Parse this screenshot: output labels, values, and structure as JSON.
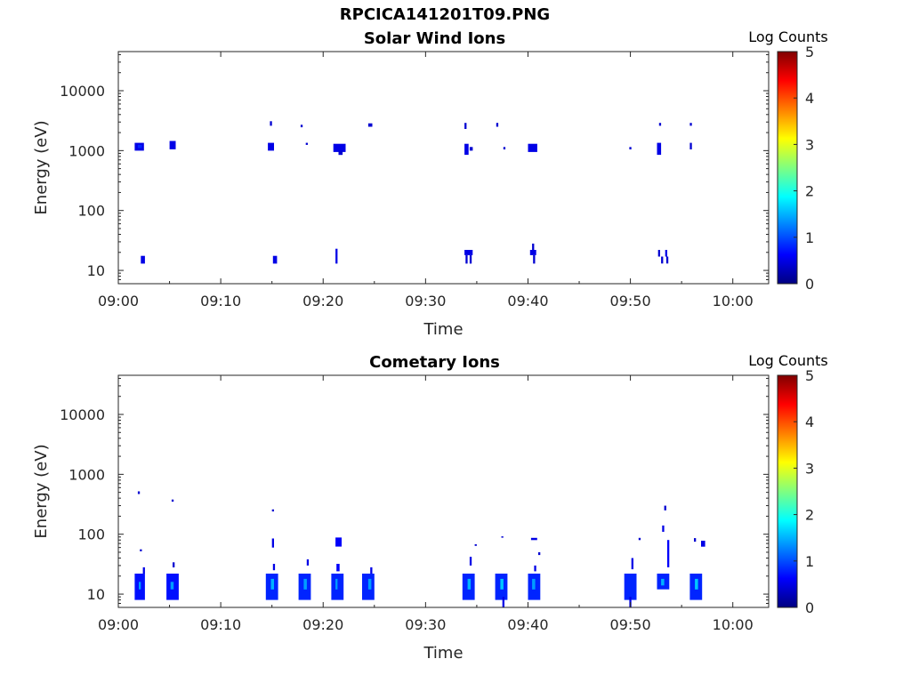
{
  "figure": {
    "title": "RPCICA141201T09.PNG"
  },
  "colorbar": {
    "label": "Log Counts",
    "range": [
      0,
      5
    ],
    "ticks": [
      "0",
      "1",
      "2",
      "3",
      "4",
      "5"
    ]
  },
  "chart_data": [
    {
      "type": "heatmap",
      "title": "Solar Wind Ions",
      "xlabel": "Time",
      "ylabel": "Energy (eV)",
      "x_unit": "minutes after 09:00",
      "xlim": [
        0,
        63.5
      ],
      "ylim": [
        6,
        45000
      ],
      "yscale": "log",
      "xticks": [
        "09:00",
        "09:10",
        "09:20",
        "09:30",
        "09:40",
        "09:50",
        "10:00"
      ],
      "yticks": [
        "10",
        "100",
        "1000",
        "10000"
      ],
      "clim": [
        0,
        5
      ],
      "cells": [
        [
          1.6,
          2.5,
          1000,
          1350,
          0.5
        ],
        [
          1.9,
          2.3,
          1100,
          1250,
          0.8
        ],
        [
          5.0,
          5.6,
          1050,
          1450,
          0.5
        ],
        [
          14.6,
          15.2,
          1000,
          1350,
          0.5
        ],
        [
          14.8,
          15.0,
          2600,
          3100,
          0.4
        ],
        [
          17.8,
          18.0,
          2450,
          2700,
          0.4
        ],
        [
          18.3,
          18.5,
          1250,
          1350,
          0.4
        ],
        [
          21.0,
          22.2,
          950,
          1300,
          0.5
        ],
        [
          21.5,
          21.9,
          850,
          1000,
          0.4
        ],
        [
          24.4,
          24.8,
          2500,
          2850,
          0.4
        ],
        [
          33.8,
          34.0,
          2300,
          2900,
          0.4
        ],
        [
          33.8,
          34.2,
          850,
          1300,
          0.5
        ],
        [
          34.3,
          34.6,
          1000,
          1150,
          0.4
        ],
        [
          36.9,
          37.1,
          2500,
          2900,
          0.4
        ],
        [
          37.6,
          37.8,
          1050,
          1150,
          0.4
        ],
        [
          40.0,
          40.9,
          950,
          1300,
          0.5
        ],
        [
          49.9,
          50.1,
          1050,
          1150,
          0.4
        ],
        [
          52.6,
          53.0,
          850,
          1350,
          0.5
        ],
        [
          52.8,
          53.0,
          2600,
          2900,
          0.4
        ],
        [
          55.8,
          56.0,
          1050,
          1350,
          0.4
        ],
        [
          55.8,
          56.0,
          2600,
          2900,
          0.4
        ],
        [
          2.2,
          2.6,
          13,
          17.5,
          0.5
        ],
        [
          15.1,
          15.5,
          13,
          17.5,
          0.5
        ],
        [
          21.2,
          21.4,
          13,
          23,
          0.5
        ],
        [
          33.8,
          34.6,
          18,
          22,
          0.5
        ],
        [
          33.9,
          34.1,
          13,
          18,
          0.4
        ],
        [
          34.3,
          34.5,
          13,
          18,
          0.4
        ],
        [
          40.2,
          40.8,
          18,
          22,
          0.5
        ],
        [
          40.4,
          40.6,
          22,
          28,
          0.4
        ],
        [
          40.5,
          40.7,
          13,
          18,
          0.4
        ],
        [
          52.7,
          52.9,
          17,
          22,
          0.4
        ],
        [
          53.0,
          53.2,
          13,
          17,
          0.4
        ],
        [
          53.4,
          53.6,
          17,
          22,
          0.5
        ],
        [
          53.5,
          53.7,
          13,
          17,
          0.4
        ]
      ]
    },
    {
      "type": "heatmap",
      "title": "Cometary Ions",
      "xlabel": "Time",
      "ylabel": "Energy (eV)",
      "x_unit": "minutes after 09:00",
      "xlim": [
        0,
        63.5
      ],
      "ylim": [
        6,
        45000
      ],
      "yscale": "log",
      "xticks": [
        "09:00",
        "09:10",
        "09:20",
        "09:30",
        "09:40",
        "09:50",
        "10:00"
      ],
      "yticks": [
        "10",
        "100",
        "1000",
        "10000"
      ],
      "clim": [
        0,
        5
      ],
      "cells": [
        [
          1.6,
          2.6,
          8,
          22,
          0.7
        ],
        [
          2.0,
          2.2,
          12,
          16,
          1.4
        ],
        [
          2.4,
          2.6,
          22,
          28,
          0.5
        ],
        [
          1.9,
          2.1,
          470,
          520,
          0.4
        ],
        [
          2.1,
          2.3,
          52,
          56,
          0.4
        ],
        [
          4.7,
          5.9,
          8,
          22,
          0.7
        ],
        [
          5.1,
          5.4,
          12,
          16,
          1.4
        ],
        [
          5.3,
          5.5,
          28,
          34,
          0.4
        ],
        [
          5.2,
          5.4,
          350,
          380,
          0.4
        ],
        [
          14.4,
          15.6,
          8,
          22,
          0.8
        ],
        [
          14.9,
          15.2,
          12,
          18,
          1.5
        ],
        [
          15.0,
          15.2,
          60,
          85,
          0.5
        ],
        [
          15.1,
          15.3,
          25,
          32,
          0.5
        ],
        [
          15.0,
          15.2,
          240,
          260,
          0.4
        ],
        [
          17.6,
          18.8,
          8,
          22,
          0.8
        ],
        [
          18.1,
          18.4,
          12,
          18,
          1.4
        ],
        [
          18.4,
          18.6,
          30,
          38,
          0.5
        ],
        [
          20.8,
          22.0,
          8,
          22,
          0.8
        ],
        [
          21.2,
          21.4,
          12,
          18,
          1.4
        ],
        [
          21.2,
          21.8,
          62,
          88,
          0.6
        ],
        [
          21.3,
          21.6,
          24,
          32,
          0.6
        ],
        [
          23.8,
          25.0,
          8,
          22,
          0.8
        ],
        [
          24.4,
          24.7,
          12,
          18,
          1.4
        ],
        [
          24.6,
          24.8,
          22,
          28,
          0.5
        ],
        [
          33.6,
          34.8,
          8,
          22,
          0.8
        ],
        [
          34.1,
          34.4,
          12,
          18,
          1.5
        ],
        [
          34.3,
          34.5,
          30,
          42,
          0.5
        ],
        [
          34.8,
          35.0,
          64,
          68,
          0.4
        ],
        [
          36.8,
          38.0,
          8,
          22,
          0.8
        ],
        [
          37.3,
          37.6,
          12,
          18,
          1.6
        ],
        [
          37.5,
          37.7,
          6,
          9,
          0.5
        ],
        [
          37.4,
          37.6,
          88,
          92,
          0.4
        ],
        [
          40.0,
          41.2,
          8,
          22,
          0.8
        ],
        [
          40.4,
          40.7,
          12,
          18,
          1.4
        ],
        [
          40.3,
          40.9,
          80,
          87,
          0.5
        ],
        [
          40.6,
          40.8,
          24,
          30,
          0.5
        ],
        [
          41.0,
          41.2,
          45,
          50,
          0.4
        ],
        [
          49.4,
          50.6,
          8,
          22,
          0.8
        ],
        [
          49.9,
          50.1,
          6,
          9,
          0.5
        ],
        [
          50.1,
          50.3,
          26,
          40,
          0.5
        ],
        [
          50.8,
          51.0,
          80,
          87,
          0.4
        ],
        [
          52.6,
          53.8,
          12,
          22,
          0.8
        ],
        [
          53.0,
          53.3,
          14,
          18,
          1.5
        ],
        [
          53.1,
          53.3,
          110,
          140,
          0.5
        ],
        [
          53.3,
          53.5,
          250,
          300,
          0.4
        ],
        [
          53.6,
          53.8,
          28,
          80,
          0.6
        ],
        [
          55.8,
          57.0,
          8,
          22,
          0.8
        ],
        [
          56.3,
          56.6,
          12,
          18,
          1.6
        ],
        [
          56.9,
          57.3,
          62,
          78,
          0.5
        ],
        [
          56.2,
          56.4,
          75,
          86,
          0.4
        ]
      ]
    }
  ]
}
